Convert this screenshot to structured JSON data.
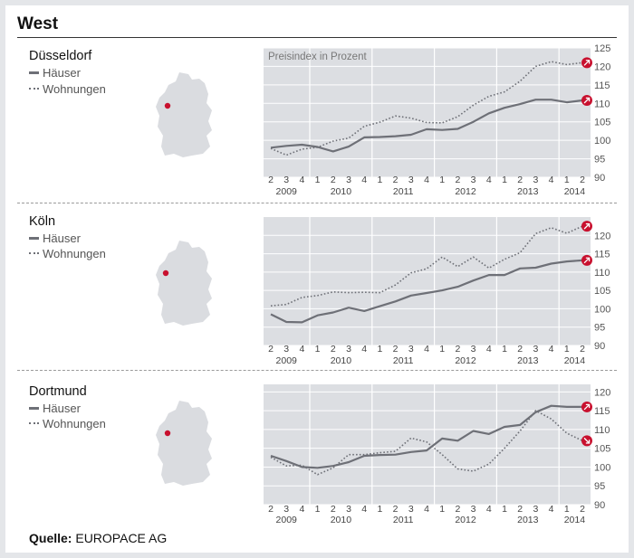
{
  "header": {
    "title": "West"
  },
  "legend": {
    "houses": "Häuser",
    "apartments": "Wohnungen"
  },
  "source": {
    "label": "Quelle:",
    "value": "EUROPACE AG"
  },
  "colors": {
    "panel": "#dcdee2",
    "line": "#6e7077",
    "marker": "#c8102e",
    "background": "#ffffff"
  },
  "chart_data": [
    {
      "type": "line",
      "city": "Düsseldorf",
      "ylabel": "Preisindex in Prozent",
      "ylim": [
        90,
        125
      ],
      "yticks": [
        90,
        95,
        100,
        105,
        110,
        115,
        120,
        125
      ],
      "categories": [
        "2",
        "3",
        "4",
        "1",
        "2",
        "3",
        "4",
        "1",
        "2",
        "3",
        "4",
        "1",
        "2",
        "3",
        "4",
        "1",
        "2",
        "3",
        "4",
        "1",
        "2"
      ],
      "year_labels": [
        "2009",
        "2010",
        "2011",
        "2012",
        "2013",
        "2014"
      ],
      "grid": true,
      "series": [
        {
          "name": "Häuser",
          "style": "solid",
          "values": [
            98.0,
            98.5,
            98.8,
            98.2,
            97.0,
            98.3,
            100.8,
            100.9,
            101.1,
            101.5,
            103.0,
            102.8,
            103.1,
            105.0,
            107.3,
            108.8,
            109.8,
            111.0,
            111.0,
            110.3,
            110.8
          ]
        },
        {
          "name": "Wohnungen",
          "style": "dotted",
          "values": [
            97.8,
            96.0,
            97.6,
            98.1,
            99.8,
            100.6,
            103.8,
            104.9,
            106.6,
            106.0,
            104.8,
            104.7,
            106.4,
            109.5,
            111.9,
            113.1,
            116.0,
            120.0,
            121.3,
            120.5,
            121.0
          ]
        }
      ]
    },
    {
      "type": "line",
      "city": "Köln",
      "ylabel": "",
      "ylim": [
        90,
        125
      ],
      "yticks": [
        90,
        95,
        100,
        105,
        110,
        115,
        120
      ],
      "categories": [
        "2",
        "3",
        "4",
        "1",
        "2",
        "3",
        "4",
        "1",
        "2",
        "3",
        "4",
        "1",
        "2",
        "3",
        "4",
        "1",
        "2",
        "3",
        "4",
        "1",
        "2"
      ],
      "year_labels": [
        "2009",
        "2010",
        "2011",
        "2012",
        "2013",
        "2014"
      ],
      "grid": true,
      "series": [
        {
          "name": "Häuser",
          "style": "solid",
          "values": [
            98.5,
            96.4,
            96.3,
            98.2,
            99.0,
            100.3,
            99.4,
            100.7,
            102.0,
            103.6,
            104.3,
            105.0,
            106.0,
            107.7,
            109.2,
            109.2,
            111.0,
            111.2,
            112.3,
            112.9,
            113.2
          ]
        },
        {
          "name": "Wohnungen",
          "style": "dotted",
          "values": [
            100.8,
            101.2,
            103.1,
            103.6,
            104.6,
            104.4,
            104.5,
            104.4,
            106.5,
            109.8,
            110.9,
            114.1,
            111.5,
            114.1,
            111.1,
            113.5,
            115.3,
            120.5,
            122.1,
            120.6,
            122.5
          ]
        }
      ]
    },
    {
      "type": "line",
      "city": "Dortmund",
      "ylabel": "",
      "ylim": [
        90,
        122
      ],
      "yticks": [
        90,
        95,
        100,
        105,
        110,
        115,
        120
      ],
      "categories": [
        "2",
        "3",
        "4",
        "1",
        "2",
        "3",
        "4",
        "1",
        "2",
        "3",
        "4",
        "1",
        "2",
        "3",
        "4",
        "1",
        "2",
        "3",
        "4",
        "1",
        "2"
      ],
      "year_labels": [
        "2009",
        "2010",
        "2011",
        "2012",
        "2013",
        "2014"
      ],
      "grid": true,
      "series": [
        {
          "name": "Häuser",
          "style": "solid",
          "values": [
            103.0,
            101.6,
            100.0,
            99.8,
            100.3,
            101.3,
            103.0,
            103.2,
            103.3,
            104.0,
            104.4,
            107.6,
            107.0,
            109.6,
            108.8,
            110.7,
            111.2,
            114.6,
            116.3,
            116.0,
            116.0
          ]
        },
        {
          "name": "Wohnungen",
          "style": "dotted",
          "values": [
            102.6,
            100.3,
            100.5,
            98.0,
            99.8,
            103.3,
            103.3,
            103.8,
            104.2,
            107.7,
            106.7,
            103.3,
            99.5,
            98.9,
            100.8,
            105.0,
            109.6,
            115.0,
            112.8,
            109.0,
            107.0
          ]
        }
      ]
    }
  ]
}
